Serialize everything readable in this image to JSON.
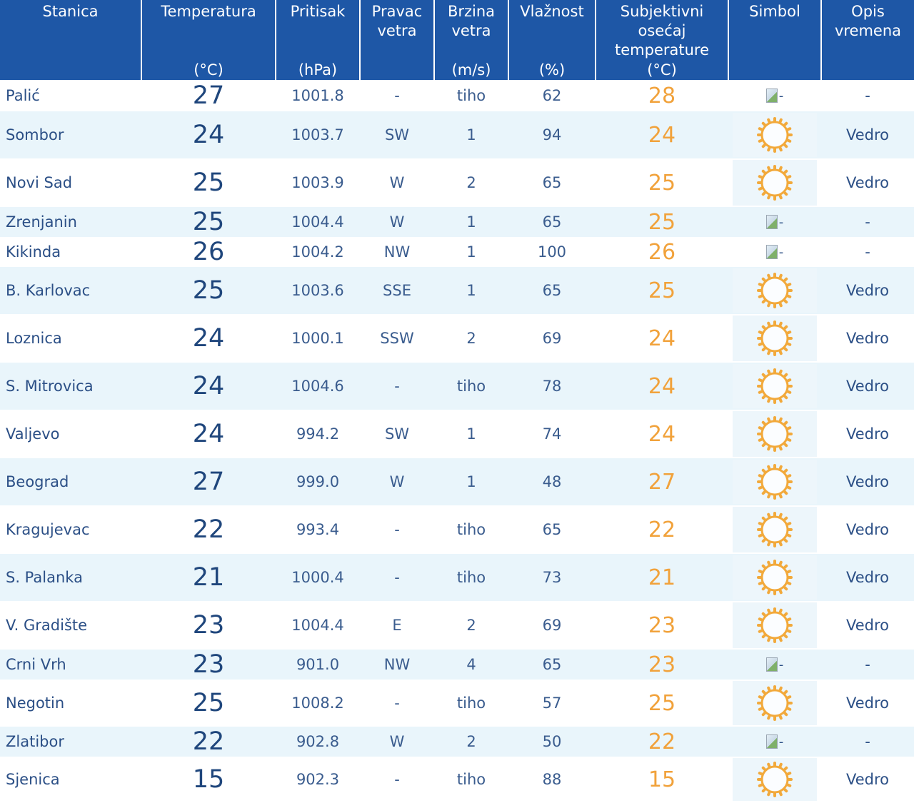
{
  "headers": [
    {
      "title": "Stanica",
      "unit": ""
    },
    {
      "title": "Temperatura",
      "unit": "(°C)"
    },
    {
      "title": "Pritisak",
      "unit": "(hPa)"
    },
    {
      "title": "Pravac vetra",
      "unit": ""
    },
    {
      "title": "Brzina vetra",
      "unit": "(m/s)"
    },
    {
      "title": "Vlažnost",
      "unit": "(%)"
    },
    {
      "title": "Subjektivni osećaj temperature",
      "unit": "(°C)"
    },
    {
      "title": "Simbol",
      "unit": ""
    },
    {
      "title": "Opis vremena",
      "unit": ""
    }
  ],
  "rows": [
    {
      "station": "Palić",
      "temp": "27",
      "pressure": "1001.8",
      "wind_dir": "-",
      "wind_speed": "tiho",
      "humidity": "62",
      "feels": "28",
      "symbol": "broken-image",
      "symbol_alt": "-",
      "desc": "-"
    },
    {
      "station": "Sombor",
      "temp": "24",
      "pressure": "1003.7",
      "wind_dir": "SW",
      "wind_speed": "1",
      "humidity": "94",
      "feels": "24",
      "symbol": "sun-icon",
      "symbol_alt": "",
      "desc": "Vedro"
    },
    {
      "station": "Novi Sad",
      "temp": "25",
      "pressure": "1003.9",
      "wind_dir": "W",
      "wind_speed": "2",
      "humidity": "65",
      "feels": "25",
      "symbol": "sun-icon",
      "symbol_alt": "",
      "desc": "Vedro"
    },
    {
      "station": "Zrenjanin",
      "temp": "25",
      "pressure": "1004.4",
      "wind_dir": "W",
      "wind_speed": "1",
      "humidity": "65",
      "feels": "25",
      "symbol": "broken-image",
      "symbol_alt": "-",
      "desc": "-"
    },
    {
      "station": "Kikinda",
      "temp": "26",
      "pressure": "1004.2",
      "wind_dir": "NW",
      "wind_speed": "1",
      "humidity": "100",
      "feels": "26",
      "symbol": "broken-image",
      "symbol_alt": "-",
      "desc": "-"
    },
    {
      "station": "B. Karlovac",
      "temp": "25",
      "pressure": "1003.6",
      "wind_dir": "SSE",
      "wind_speed": "1",
      "humidity": "65",
      "feels": "25",
      "symbol": "sun-icon",
      "symbol_alt": "",
      "desc": "Vedro"
    },
    {
      "station": "Loznica",
      "temp": "24",
      "pressure": "1000.1",
      "wind_dir": "SSW",
      "wind_speed": "2",
      "humidity": "69",
      "feels": "24",
      "symbol": "sun-icon",
      "symbol_alt": "",
      "desc": "Vedro"
    },
    {
      "station": "S. Mitrovica",
      "temp": "24",
      "pressure": "1004.6",
      "wind_dir": "-",
      "wind_speed": "tiho",
      "humidity": "78",
      "feels": "24",
      "symbol": "sun-icon",
      "symbol_alt": "",
      "desc": "Vedro"
    },
    {
      "station": "Valjevo",
      "temp": "24",
      "pressure": "994.2",
      "wind_dir": "SW",
      "wind_speed": "1",
      "humidity": "74",
      "feels": "24",
      "symbol": "sun-icon",
      "symbol_alt": "",
      "desc": "Vedro"
    },
    {
      "station": "Beograd",
      "temp": "27",
      "pressure": "999.0",
      "wind_dir": "W",
      "wind_speed": "1",
      "humidity": "48",
      "feels": "27",
      "symbol": "sun-icon",
      "symbol_alt": "",
      "desc": "Vedro"
    },
    {
      "station": "Kragujevac",
      "temp": "22",
      "pressure": "993.4",
      "wind_dir": "-",
      "wind_speed": "tiho",
      "humidity": "65",
      "feels": "22",
      "symbol": "sun-icon",
      "symbol_alt": "",
      "desc": "Vedro"
    },
    {
      "station": "S. Palanka",
      "temp": "21",
      "pressure": "1000.4",
      "wind_dir": "-",
      "wind_speed": "tiho",
      "humidity": "73",
      "feels": "21",
      "symbol": "sun-icon",
      "symbol_alt": "",
      "desc": "Vedro"
    },
    {
      "station": "V. Gradište",
      "temp": "23",
      "pressure": "1004.4",
      "wind_dir": "E",
      "wind_speed": "2",
      "humidity": "69",
      "feels": "23",
      "symbol": "sun-icon",
      "symbol_alt": "",
      "desc": "Vedro"
    },
    {
      "station": "Crni Vrh",
      "temp": "23",
      "pressure": "901.0",
      "wind_dir": "NW",
      "wind_speed": "4",
      "humidity": "65",
      "feels": "23",
      "symbol": "broken-image",
      "symbol_alt": "-",
      "desc": "-"
    },
    {
      "station": "Negotin",
      "temp": "25",
      "pressure": "1008.2",
      "wind_dir": "-",
      "wind_speed": "tiho",
      "humidity": "57",
      "feels": "25",
      "symbol": "sun-icon",
      "symbol_alt": "",
      "desc": "Vedro"
    },
    {
      "station": "Zlatibor",
      "temp": "22",
      "pressure": "902.8",
      "wind_dir": "W",
      "wind_speed": "2",
      "humidity": "50",
      "feels": "22",
      "symbol": "broken-image",
      "symbol_alt": "-",
      "desc": "-"
    },
    {
      "station": "Sjenica",
      "temp": "15",
      "pressure": "902.3",
      "wind_dir": "-",
      "wind_speed": "tiho",
      "humidity": "88",
      "feels": "15",
      "symbol": "sun-icon",
      "symbol_alt": "",
      "desc": "Vedro"
    }
  ],
  "colors": {
    "header_bg": "#1e57a6",
    "header_text": "#ffffff",
    "row_alt_bg": "#e9f5fb",
    "text": "#2b4f86",
    "feels_like": "#f1a23b",
    "sun": "#f2a93b"
  }
}
